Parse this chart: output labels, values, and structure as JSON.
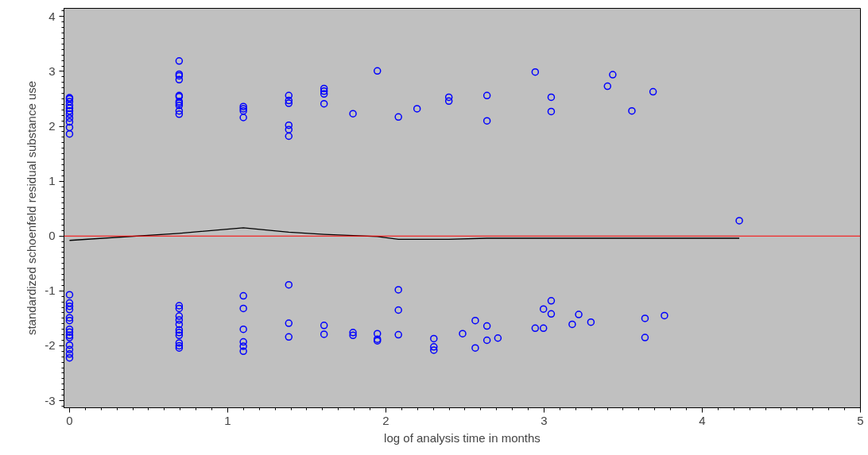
{
  "chart_data": {
    "type": "scatter",
    "xlabel": "log of analysis time in months",
    "ylabel": "standardized schoenfeld residual substance use",
    "xlim": [
      -0.035,
      5.0
    ],
    "ylim": [
      -3.13,
      4.15
    ],
    "xticks": [
      0,
      1,
      2,
      3,
      4,
      5
    ],
    "yticks": [
      -3,
      -2,
      -1,
      0,
      1,
      2,
      3,
      4
    ],
    "grid": false,
    "series": [
      {
        "color": "#0000ff",
        "marker": "circle",
        "x": [
          0,
          0,
          0,
          0,
          0,
          0,
          0,
          0,
          0,
          0,
          0,
          0,
          0,
          0,
          0,
          0,
          0,
          0,
          0,
          0,
          0,
          0,
          0,
          0,
          0,
          0.693,
          0.693,
          0.693,
          0.693,
          0.693,
          0.693,
          0.693,
          0.693,
          0.693,
          0.693,
          0.693,
          0.693,
          0.693,
          0.693,
          0.693,
          0.693,
          0.693,
          0.693,
          0.693,
          0.693,
          0.693,
          0.693,
          1.099,
          1.099,
          1.099,
          1.099,
          1.099,
          1.099,
          1.099,
          1.099,
          1.099,
          1.099,
          1.386,
          1.386,
          1.386,
          1.386,
          1.386,
          1.386,
          1.386,
          1.386,
          1.386,
          1.609,
          1.609,
          1.609,
          1.609,
          1.609,
          1.609,
          1.792,
          1.792,
          1.792,
          1.946,
          1.946,
          1.946,
          1.946,
          2.079,
          2.079,
          2.079,
          2.079,
          2.197,
          2.303,
          2.303,
          2.303,
          2.398,
          2.398,
          2.485,
          2.565,
          2.565,
          2.639,
          2.639,
          2.639,
          2.639,
          2.708,
          2.944,
          2.944,
          2.996,
          2.996,
          3.045,
          3.045,
          3.045,
          3.045,
          3.178,
          3.219,
          3.296,
          3.401,
          3.434,
          3.555,
          3.638,
          3.638,
          3.689,
          3.761,
          4.234
        ],
        "values": [
          1.86,
          1.98,
          2.08,
          2.15,
          2.22,
          2.28,
          2.33,
          2.38,
          2.45,
          2.5,
          2.52,
          -1.07,
          -1.22,
          -1.28,
          -1.34,
          -1.49,
          -1.54,
          -1.7,
          -1.75,
          -1.81,
          -1.85,
          -1.99,
          -2.07,
          -2.15,
          -2.22,
          3.19,
          2.95,
          2.92,
          2.85,
          2.56,
          2.54,
          2.45,
          2.42,
          2.38,
          2.28,
          2.22,
          -1.27,
          -1.32,
          -1.46,
          -1.53,
          -1.61,
          -1.71,
          -1.76,
          -1.81,
          -1.95,
          -2.0,
          -2.04,
          2.36,
          2.32,
          2.28,
          2.16,
          -1.09,
          -1.32,
          -1.7,
          -1.93,
          -2.01,
          -2.1,
          2.56,
          2.47,
          2.42,
          2.02,
          1.94,
          1.82,
          -0.89,
          -1.59,
          -1.84,
          2.69,
          2.64,
          2.59,
          2.41,
          -1.63,
          -1.79,
          2.23,
          -1.76,
          -1.81,
          3.01,
          -1.78,
          -1.88,
          -1.91,
          2.17,
          -0.98,
          -1.35,
          -1.8,
          2.32,
          -1.87,
          -2.02,
          -2.08,
          2.53,
          2.46,
          -1.78,
          -1.54,
          -2.04,
          2.56,
          2.1,
          -1.64,
          -1.9,
          -1.86,
          2.99,
          -1.68,
          -1.33,
          -1.68,
          2.53,
          2.27,
          -1.18,
          -1.42,
          -1.61,
          -1.43,
          -1.57,
          2.73,
          2.94,
          2.28,
          -1.5,
          -1.85,
          2.63,
          -1.45,
          0.28
        ]
      },
      {
        "type": "line",
        "marker": "none",
        "color": "#000000",
        "x": [
          0,
          0.693,
          1.099,
          1.386,
          1.609,
          1.946,
          2.079,
          2.398,
          2.639,
          4.234
        ],
        "values": [
          -0.08,
          0.05,
          0.15,
          0.07,
          0.03,
          -0.01,
          -0.06,
          -0.06,
          -0.04,
          -0.04
        ]
      }
    ],
    "ref_lines": [
      {
        "axis": "y",
        "value": 0,
        "color": "#ff0000"
      }
    ]
  }
}
